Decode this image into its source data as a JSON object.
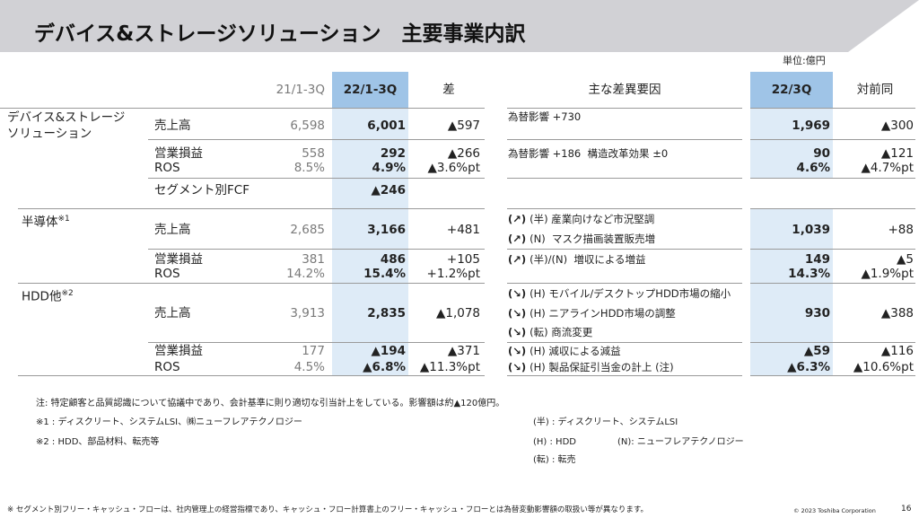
{
  "title": "デバイス&ストレージソリューション　主要事業内訳",
  "unit": "単位:億円",
  "columns": {
    "prev": "21/1-3Q",
    "curr": "22/1-3Q",
    "diff": "差",
    "factors": "主な差異要因",
    "q3": "22/3Q",
    "yoy": "対前同"
  },
  "segments": [
    {
      "label": "デバイス&ストレージ",
      "label2": "ソリューション"
    },
    {
      "label": "半導体",
      "sup": "※1"
    },
    {
      "label": "HDD他",
      "sup": "※2"
    }
  ],
  "rows": [
    {
      "item": "売上高",
      "prev": "6,598",
      "curr": "6,001",
      "diff": "▲597",
      "q3": "1,969",
      "yoy": "▲300",
      "factors": [
        {
          "arrow": "",
          "text": "為替影響 +730"
        }
      ]
    },
    {
      "item": "営業損益",
      "prev": "558",
      "curr": "292",
      "diff": "▲266",
      "q3": "90",
      "yoy": "▲121",
      "factors": [
        {
          "arrow": "",
          "text": "為替影響 +186  構造改革効果 ±0"
        }
      ]
    },
    {
      "item": "ROS",
      "prev": "8.5%",
      "curr": "4.9%",
      "diff": "▲3.6%pt",
      "q3": "4.6%",
      "yoy": "▲4.7%pt",
      "factors": []
    },
    {
      "item": "セグメント別FCF",
      "prev": "",
      "curr": "▲246",
      "diff": "",
      "q3": "",
      "yoy": "",
      "factors": []
    },
    {
      "item": "売上高",
      "prev": "2,685",
      "curr": "3,166",
      "diff": "+481",
      "q3": "1,039",
      "yoy": "+88",
      "factors": [
        {
          "arrow": "(↗)",
          "text": "(半) 産業向けなど市況堅調"
        },
        {
          "arrow": "(↗)",
          "text": "(N)  マスク描画装置販売増"
        }
      ]
    },
    {
      "item": "営業損益",
      "prev": "381",
      "curr": "486",
      "diff": "+105",
      "q3": "149",
      "yoy": "▲5",
      "factors": [
        {
          "arrow": "(↗)",
          "text": "(半)/(N)  増収による増益"
        }
      ]
    },
    {
      "item": "ROS",
      "prev": "14.2%",
      "curr": "15.4%",
      "diff": "+1.2%pt",
      "q3": "14.3%",
      "yoy": "▲1.9%pt",
      "factors": []
    },
    {
      "item": "売上高",
      "prev": "3,913",
      "curr": "2,835",
      "diff": "▲1,078",
      "q3": "930",
      "yoy": "▲388",
      "factors": [
        {
          "arrow": "(↘)",
          "text": "(H) モバイル/デスクトップHDD市場の縮小"
        },
        {
          "arrow": "(↘)",
          "text": "(H) ニアラインHDD市場の調整"
        },
        {
          "arrow": "(↘)",
          "text": "(転) 商流変更"
        }
      ]
    },
    {
      "item": "営業損益",
      "prev": "177",
      "curr": "▲194",
      "diff": "▲371",
      "q3": "▲59",
      "yoy": "▲116",
      "factors": [
        {
          "arrow": "(↘)",
          "text": "(H) 減収による減益"
        }
      ]
    },
    {
      "item": "ROS",
      "prev": "4.5%",
      "curr": "▲6.8%",
      "diff": "▲11.3%pt",
      "q3": "▲6.3%",
      "yoy": "▲10.6%pt",
      "factors": [
        {
          "arrow": "(↘)",
          "text": "(H) 製品保証引当金の計上 (注)"
        }
      ]
    }
  ],
  "notes": {
    "note": "注: 特定顧客と品質認識について協議中であり、会計基準に則り適切な引当計上をしている。影響額は約▲120億円。",
    "n1": "※1 : ディスクリート、システムLSI、㈱ニューフレアテクノロジー",
    "n2": "※2 : HDD、部品材料、転売等",
    "leg_semi": "(半) : ディスクリート、システムLSI",
    "leg_h": "(H) : HDD",
    "leg_n": "(N): ニューフレアテクノロジー",
    "leg_ten": "(転) : 転売",
    "fcf": "※ セグメント別フリー・キャッシュ・フローは、社内管理上の経営指標であり、キャッシュ・フロー計算書上のフリー・キャッシュ・フローとは為替変動影響額の取扱い等が異なります。"
  },
  "footer": {
    "copyright": "© 2023 Toshiba Corporation",
    "page": "16"
  }
}
